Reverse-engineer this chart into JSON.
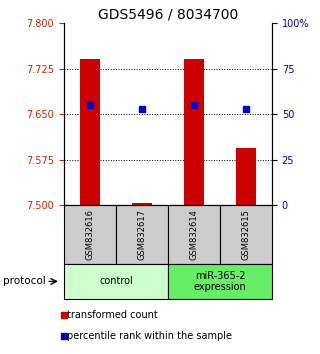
{
  "title": "GDS5496 / 8034700",
  "samples": [
    "GSM832616",
    "GSM832617",
    "GSM832614",
    "GSM832615"
  ],
  "red_bar_values": [
    7.74,
    7.503,
    7.74,
    7.595
  ],
  "blue_dot_values": [
    7.665,
    7.658,
    7.665,
    7.658
  ],
  "ymin": 7.5,
  "ymax": 7.8,
  "yticks_left": [
    7.5,
    7.575,
    7.65,
    7.725,
    7.8
  ],
  "yticks_right_pct": [
    0,
    25,
    50,
    75,
    100
  ],
  "yticks_right_vals": [
    7.5,
    7.575,
    7.65,
    7.725,
    7.8
  ],
  "protocol_groups": [
    {
      "label": "control",
      "indices": [
        0,
        1
      ],
      "color": "#ccffcc"
    },
    {
      "label": "miR-365-2\nexpression",
      "indices": [
        2,
        3
      ],
      "color": "#66ee66"
    }
  ],
  "bar_color": "#cc0000",
  "dot_color": "#0000cc",
  "bar_width": 0.4,
  "legend_red": "transformed count",
  "legend_blue": "percentile rank within the sample",
  "protocol_label": "protocol",
  "sample_box_color": "#cccccc",
  "title_fontsize": 10,
  "tick_fontsize": 7,
  "legend_fontsize": 7,
  "sample_fontsize": 6,
  "proto_fontsize": 7
}
